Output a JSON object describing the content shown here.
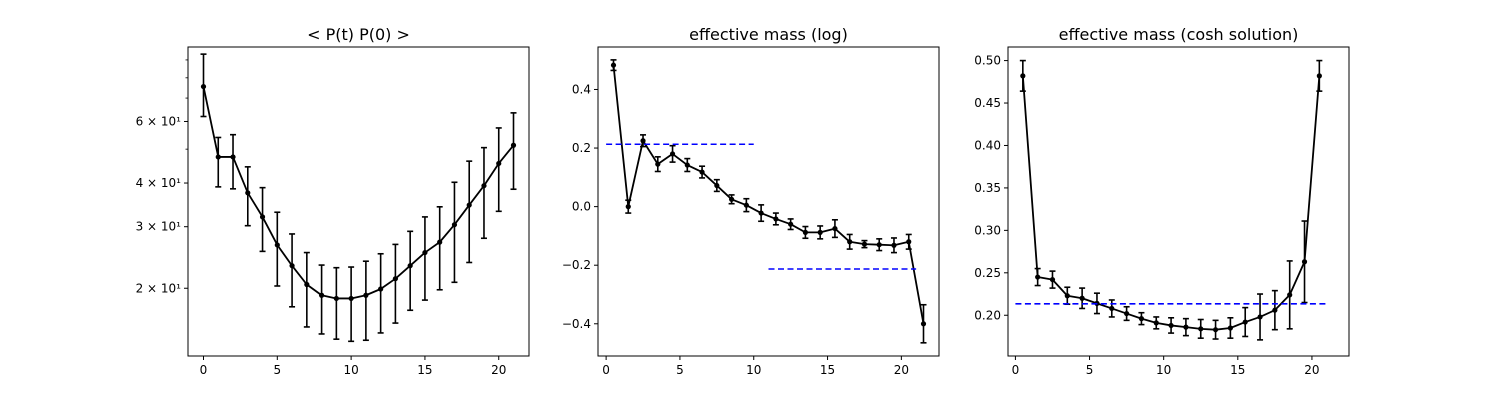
{
  "chart_data": [
    {
      "type": "line",
      "title": "< P(t)  P(0) >",
      "xlabel": "",
      "ylabel": "",
      "yscale": "log",
      "xlim": [
        -1.05,
        22.05
      ],
      "ylim": [
        12.8,
        98
      ],
      "xticks": [
        0,
        5,
        10,
        15,
        20
      ],
      "xtick_labels": [
        "0",
        "5",
        "10",
        "15",
        "20"
      ],
      "yticks": [
        20,
        30,
        40,
        60
      ],
      "ytick_labels": [
        "2 × 10¹",
        "3 × 10¹",
        "4 × 10¹",
        "6 × 10¹"
      ],
      "grid": false,
      "series": [
        {
          "color": "#000000",
          "marker": "dot",
          "errorbars": true,
          "x": [
            0,
            1,
            2,
            3,
            4,
            5,
            6,
            7,
            8,
            9,
            10,
            11,
            12,
            13,
            14,
            15,
            16,
            17,
            18,
            19,
            20,
            21
          ],
          "y": [
            75.5,
            47.5,
            47.5,
            37.5,
            32.0,
            26.6,
            23.2,
            20.5,
            19.1,
            18.7,
            18.7,
            19.1,
            19.9,
            21.3,
            23.2,
            25.3,
            27.1,
            30.4,
            34.6,
            39.3,
            45.5,
            51.3
          ],
          "err_low": [
            62.0,
            39.0,
            38.5,
            30.2,
            25.5,
            20.3,
            17.7,
            15.5,
            14.8,
            14.3,
            14.1,
            14.2,
            14.9,
            15.9,
            17.3,
            18.5,
            19.8,
            20.8,
            23.7,
            27.8,
            33.2,
            38.4
          ],
          "err_high": [
            93.5,
            54.0,
            55.0,
            44.5,
            38.8,
            33.0,
            28.6,
            25.3,
            23.3,
            22.9,
            23.0,
            23.9,
            25.1,
            26.7,
            29.1,
            32.0,
            34.2,
            40.2,
            46.2,
            50.5,
            57.5,
            63.5
          ]
        }
      ]
    },
    {
      "type": "line",
      "title": "effective mass (log)",
      "xlabel": "",
      "ylabel": "",
      "xlim": [
        -0.55,
        22.55
      ],
      "ylim": [
        -0.51,
        0.545
      ],
      "xticks": [
        0,
        5,
        10,
        15,
        20
      ],
      "xtick_labels": [
        "0",
        "5",
        "10",
        "15",
        "20"
      ],
      "yticks": [
        -0.4,
        -0.2,
        0.0,
        0.2,
        0.4
      ],
      "ytick_labels": [
        "−0.4",
        "−0.2",
        "0.0",
        "0.2",
        "0.4"
      ],
      "grid": false,
      "series": [
        {
          "color": "#000000",
          "marker": "dot",
          "errorbars": true,
          "x": [
            0.5,
            1.5,
            2.5,
            3.5,
            4.5,
            5.5,
            6.5,
            7.5,
            8.5,
            9.5,
            10.5,
            11.5,
            12.5,
            13.5,
            14.5,
            15.5,
            16.5,
            17.5,
            18.5,
            19.5,
            20.5,
            21.5
          ],
          "y": [
            0.483,
            0.0,
            0.225,
            0.145,
            0.18,
            0.142,
            0.118,
            0.072,
            0.025,
            0.005,
            -0.022,
            -0.042,
            -0.06,
            -0.088,
            -0.088,
            -0.075,
            -0.12,
            -0.128,
            -0.13,
            -0.132,
            -0.12,
            -0.4
          ],
          "err": [
            0.018,
            0.022,
            0.02,
            0.025,
            0.028,
            0.022,
            0.02,
            0.02,
            0.015,
            0.022,
            0.028,
            0.02,
            0.018,
            0.02,
            0.022,
            0.03,
            0.025,
            0.012,
            0.02,
            0.025,
            0.025,
            0.065
          ]
        },
        {
          "color": "#0000ff",
          "style": "dashed",
          "x": [
            0,
            10
          ],
          "y": [
            0.213,
            0.213
          ]
        },
        {
          "color": "#0000ff",
          "style": "dashed",
          "x": [
            11,
            21
          ],
          "y": [
            -0.213,
            -0.213
          ]
        }
      ]
    },
    {
      "type": "line",
      "title": "effective mass (cosh solution)",
      "xlabel": "",
      "ylabel": "",
      "xlim": [
        -0.5,
        22.5
      ],
      "ylim": [
        0.152,
        0.516
      ],
      "xticks": [
        0,
        5,
        10,
        15,
        20
      ],
      "xtick_labels": [
        "0",
        "5",
        "10",
        "15",
        "20"
      ],
      "yticks": [
        0.2,
        0.25,
        0.3,
        0.35,
        0.4,
        0.45,
        0.5
      ],
      "ytick_labels": [
        "0.20",
        "0.25",
        "0.30",
        "0.35",
        "0.40",
        "0.45",
        "0.50"
      ],
      "grid": false,
      "series": [
        {
          "color": "#000000",
          "marker": "dot",
          "errorbars": true,
          "x": [
            0.5,
            1.5,
            2.5,
            3.5,
            4.5,
            5.5,
            6.5,
            7.5,
            8.5,
            9.5,
            10.5,
            11.5,
            12.5,
            13.5,
            14.5,
            15.5,
            16.5,
            17.5,
            18.5,
            19.5,
            20.5
          ],
          "y": [
            0.482,
            0.245,
            0.242,
            0.223,
            0.22,
            0.214,
            0.208,
            0.202,
            0.196,
            0.191,
            0.188,
            0.186,
            0.184,
            0.183,
            0.185,
            0.192,
            0.198,
            0.206,
            0.224,
            0.263,
            0.482
          ],
          "err": [
            0.018,
            0.01,
            0.01,
            0.01,
            0.012,
            0.012,
            0.01,
            0.008,
            0.007,
            0.007,
            0.009,
            0.01,
            0.011,
            0.011,
            0.012,
            0.017,
            0.027,
            0.023,
            0.04,
            0.048,
            0.018
          ]
        },
        {
          "color": "#0000ff",
          "style": "dashed",
          "x": [
            0,
            21
          ],
          "y": [
            0.2135,
            0.2135
          ]
        }
      ]
    }
  ]
}
